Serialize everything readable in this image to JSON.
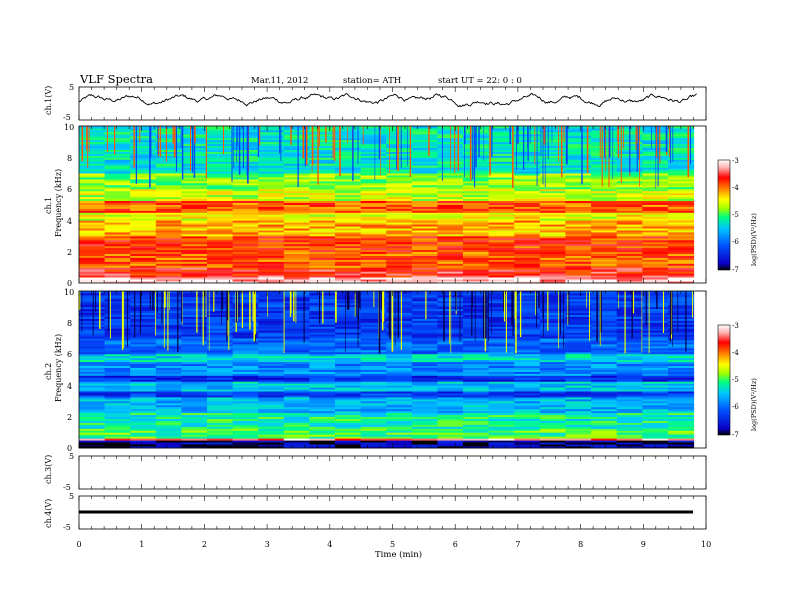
{
  "header": {
    "title": "VLF  Spectra",
    "date": "Mar.11, 2012",
    "station": "station= ATH",
    "start": "start  UT  =   22: 0   : 0"
  },
  "colorbar": {
    "label": "log(PSD)(V²/Hz)",
    "ticks": [
      "-3",
      "-4",
      "-5",
      "-6",
      "-7"
    ],
    "colors": [
      "#000000",
      "#0a00c8",
      "#0050ff",
      "#00c8ff",
      "#00ff80",
      "#a0ff00",
      "#ffff00",
      "#ff8000",
      "#ff0000",
      "#ffb0b0",
      "#ffffff"
    ]
  },
  "chart_data": [
    {
      "type": "line",
      "id": "ch1-waveform",
      "ylabel": "ch.1(V)",
      "ylim": [
        -5,
        5
      ],
      "yticks": [
        "5",
        "-5"
      ],
      "xlim": [
        0,
        10
      ],
      "description_series": "continuous noisy waveform fluctuating mostly between -1.5 and 2.5 V over 0–9.8 min"
    },
    {
      "type": "heatmap",
      "id": "ch1-spectrogram",
      "ylabel": "ch.1",
      "ylabel2": "Frequency  (kHz)",
      "ylim": [
        0,
        10
      ],
      "yticks": [
        "10",
        "8",
        "6",
        "4",
        "2",
        "0"
      ],
      "xlim": [
        0,
        9.8
      ],
      "bands_khz_logpsd": [
        [
          0.0,
          0.3,
          -3.2
        ],
        [
          0.3,
          1.0,
          -3.6
        ],
        [
          1.0,
          2.0,
          -3.9
        ],
        [
          2.0,
          3.0,
          -3.8
        ],
        [
          3.0,
          4.0,
          -4.2
        ],
        [
          4.0,
          4.4,
          -4.5
        ],
        [
          4.4,
          5.2,
          -3.9
        ],
        [
          5.2,
          6.0,
          -4.6
        ],
        [
          6.0,
          7.0,
          -4.8
        ],
        [
          7.0,
          10.0,
          -5.3
        ]
      ]
    },
    {
      "type": "heatmap",
      "id": "ch2-spectrogram",
      "ylabel": "ch.2",
      "ylabel2": "Frequency  (kHz)",
      "ylim": [
        0,
        10
      ],
      "yticks": [
        "10",
        "8",
        "6",
        "4",
        "2",
        "0"
      ],
      "xlim": [
        0,
        9.8
      ],
      "bands_khz_logpsd": [
        [
          0.0,
          0.4,
          -6.8
        ],
        [
          0.4,
          0.6,
          -3.3
        ],
        [
          0.6,
          1.2,
          -5.0
        ],
        [
          1.2,
          2.2,
          -5.2
        ],
        [
          2.2,
          3.2,
          -5.6
        ],
        [
          3.2,
          3.6,
          -6.3
        ],
        [
          3.6,
          4.2,
          -5.5
        ],
        [
          4.2,
          4.6,
          -6.4
        ],
        [
          4.6,
          5.4,
          -5.8
        ],
        [
          5.4,
          6.0,
          -5.4
        ],
        [
          6.0,
          7.0,
          -6.0
        ],
        [
          7.0,
          10.0,
          -6.3
        ]
      ]
    },
    {
      "type": "line",
      "id": "ch3-waveform",
      "ylabel": "ch.3(V)",
      "ylim": [
        -5,
        5
      ],
      "yticks": [
        "5",
        "-5"
      ],
      "xlim": [
        0,
        10
      ],
      "values_note": "empty panel"
    },
    {
      "type": "line",
      "id": "ch4-waveform",
      "ylabel": "ch.4(V)",
      "ylim": [
        -5,
        5
      ],
      "yticks": [
        "5",
        "-5"
      ],
      "xlim": [
        0,
        10
      ],
      "constant_value": 0,
      "xlabel": "Time  (min)",
      "xticks": [
        "0",
        "1",
        "2",
        "3",
        "4",
        "5",
        "6",
        "7",
        "8",
        "9",
        "10"
      ]
    }
  ]
}
